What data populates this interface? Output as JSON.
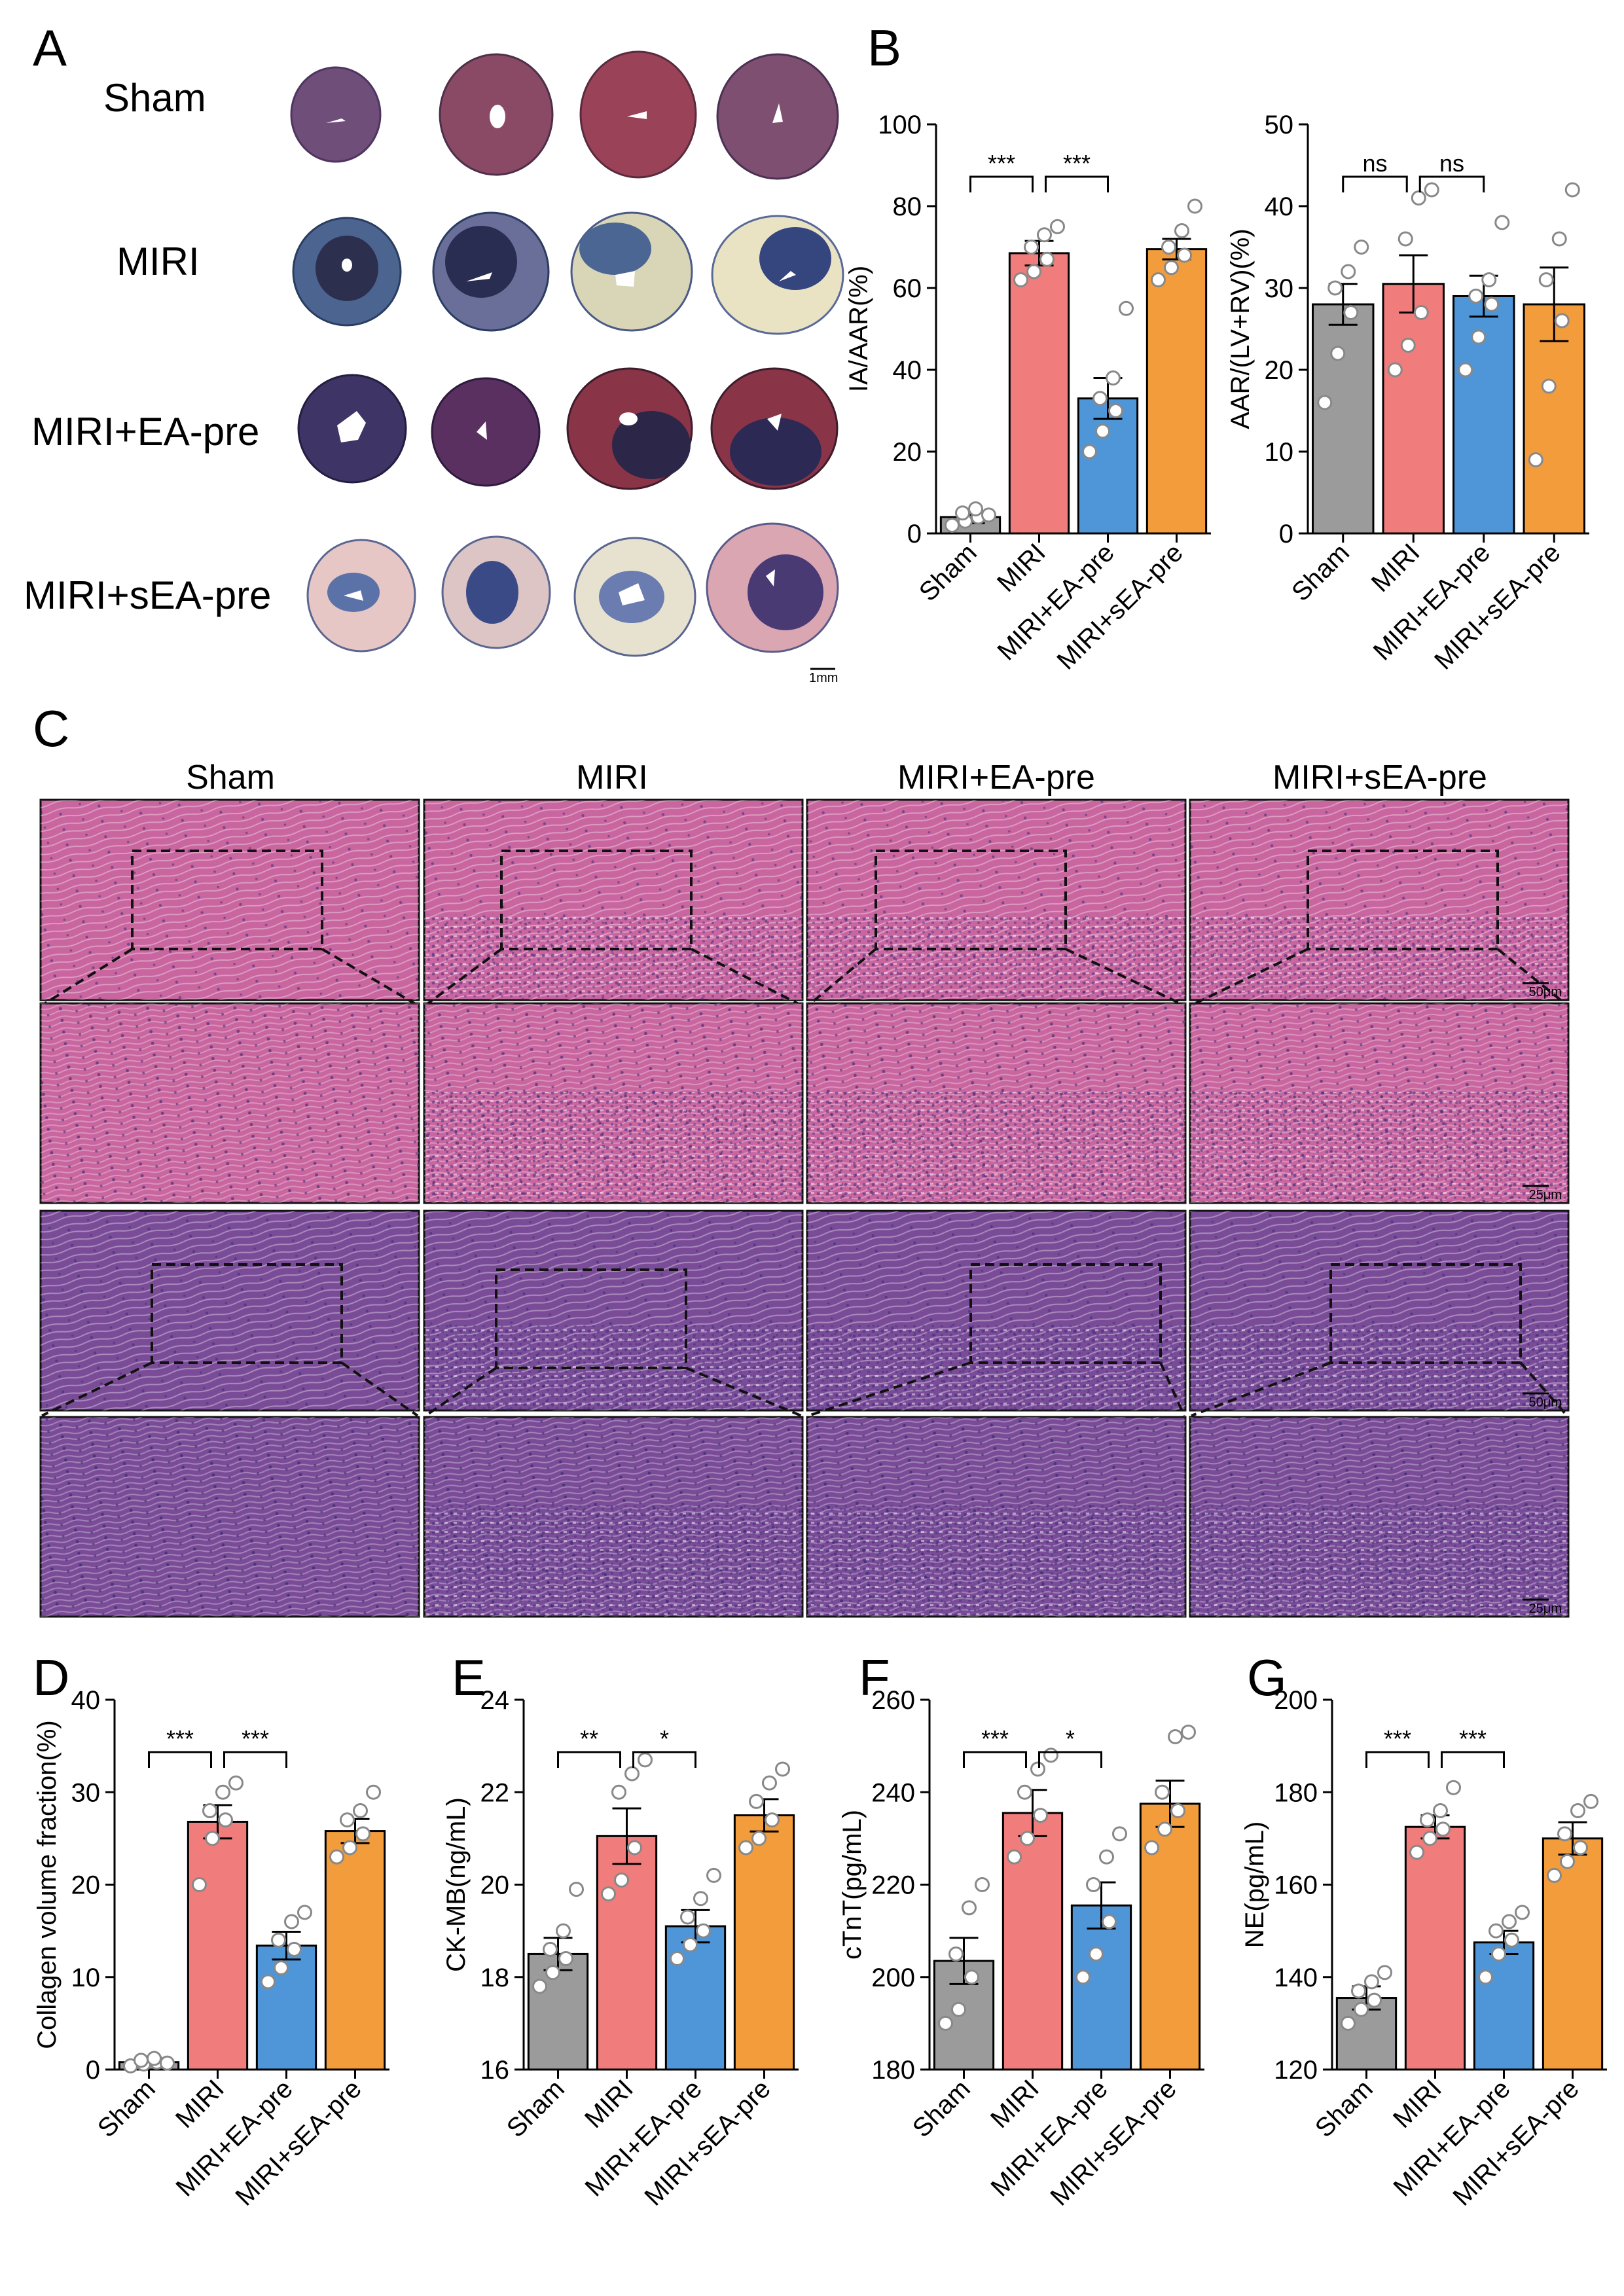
{
  "panels": {
    "A": {
      "letter": "A",
      "rows": [
        "Sham",
        "MIRI",
        "MIRI+EA-pre",
        "MIRI+sEA-pre"
      ],
      "scale_bar": "1mm",
      "colors": {
        "infarct": "#f3efdf",
        "viable": "#a4394f",
        "blue_area": "#2f3570"
      }
    },
    "B": {
      "letter": "B"
    },
    "C": {
      "letter": "C",
      "columns": [
        "Sham",
        "MIRI",
        "MIRI+EA-pre",
        "MIRI+sEA-pre"
      ],
      "scale_bars": [
        "50μm",
        "25μm",
        "50μm",
        "25μm"
      ],
      "colors": {
        "he": "#c9659f",
        "masson": "#7a4c98"
      }
    },
    "D": {
      "letter": "D"
    },
    "E": {
      "letter": "E"
    },
    "F": {
      "letter": "F"
    },
    "G": {
      "letter": "G"
    }
  },
  "colors": {
    "Sham": "#9b9b9b",
    "MIRI": "#f07c7c",
    "MIRI+EA-pre": "#4f96d8",
    "MIRI+sEA-pre": "#f39c3c"
  },
  "chart_data": [
    {
      "id": "B1",
      "type": "bar",
      "categories": [
        "Sham",
        "MIRI",
        "MIRI+EA-pre",
        "MIRI+sEA-pre"
      ],
      "values": [
        4,
        68.5,
        33,
        69.5
      ],
      "errors": [
        1.5,
        3,
        5,
        2.5
      ],
      "points": [
        [
          2,
          3,
          4,
          5,
          6,
          4.5
        ],
        [
          62,
          64,
          67,
          70,
          73,
          75
        ],
        [
          20,
          25,
          30,
          33,
          38,
          55
        ],
        [
          62,
          65,
          68,
          70,
          74,
          80
        ]
      ],
      "ylabel": "IA/AAR(%)",
      "ylim": [
        0,
        100
      ],
      "yticks": [
        0,
        20,
        40,
        60,
        80,
        100
      ],
      "annotations": [
        {
          "from": 0,
          "to": 1,
          "text": "***"
        },
        {
          "from": 1,
          "to": 2,
          "text": "***"
        }
      ]
    },
    {
      "id": "B2",
      "type": "bar",
      "categories": [
        "Sham",
        "MIRI",
        "MIRI+EA-pre",
        "MIRI+sEA-pre"
      ],
      "values": [
        28,
        30.5,
        29,
        28
      ],
      "errors": [
        2.5,
        3.5,
        2.5,
        4.5
      ],
      "points": [
        [
          16,
          22,
          27,
          30,
          32,
          35
        ],
        [
          20,
          23,
          27,
          36,
          41,
          42
        ],
        [
          20,
          24,
          28,
          29,
          31,
          38
        ],
        [
          9,
          18,
          26,
          31,
          36,
          42
        ]
      ],
      "ylabel": "AAR/(LV+RV)(%)",
      "ylim": [
        0,
        50
      ],
      "yticks": [
        0,
        10,
        20,
        30,
        40,
        50
      ],
      "annotations": [
        {
          "from": 0,
          "to": 1,
          "text": "ns"
        },
        {
          "from": 1,
          "to": 2,
          "text": "ns"
        }
      ]
    },
    {
      "id": "D",
      "type": "bar",
      "categories": [
        "Sham",
        "MIRI",
        "MIRI+EA-pre",
        "MIRI+sEA-pre"
      ],
      "values": [
        0.8,
        26.8,
        13.4,
        25.8
      ],
      "errors": [
        0.3,
        1.8,
        1.5,
        1.3
      ],
      "points": [
        [
          0.4,
          0.6,
          0.8,
          1,
          1.2,
          0.7
        ],
        [
          20,
          25,
          27,
          28,
          30,
          31
        ],
        [
          9.5,
          11,
          13,
          14,
          16,
          17
        ],
        [
          23,
          24,
          25.5,
          27,
          28,
          30
        ]
      ],
      "ylabel": "Collagen volume fraction(%)",
      "ylim": [
        0,
        40
      ],
      "yticks": [
        0,
        10,
        20,
        30,
        40
      ],
      "annotations": [
        {
          "from": 0,
          "to": 1,
          "text": "***"
        },
        {
          "from": 1,
          "to": 2,
          "text": "***"
        }
      ]
    },
    {
      "id": "E",
      "type": "bar",
      "categories": [
        "Sham",
        "MIRI",
        "MIRI+EA-pre",
        "MIRI+sEA-pre"
      ],
      "values": [
        18.5,
        21.05,
        19.1,
        21.5
      ],
      "errors": [
        0.35,
        0.6,
        0.35,
        0.35
      ],
      "points": [
        [
          17.8,
          18.1,
          18.4,
          18.6,
          19.0,
          19.9
        ],
        [
          19.8,
          20.1,
          20.8,
          22.0,
          22.4,
          22.7
        ],
        [
          18.4,
          18.7,
          19.0,
          19.3,
          19.7,
          20.2
        ],
        [
          20.8,
          21.0,
          21.4,
          21.8,
          22.2,
          22.5
        ]
      ],
      "ylabel": "CK-MB(ng/mL)",
      "ylim": [
        16,
        24
      ],
      "yticks": [
        16,
        18,
        20,
        22,
        24
      ],
      "annotations": [
        {
          "from": 0,
          "to": 1,
          "text": "**"
        },
        {
          "from": 1,
          "to": 2,
          "text": "*"
        }
      ]
    },
    {
      "id": "F",
      "type": "bar",
      "categories": [
        "Sham",
        "MIRI",
        "MIRI+EA-pre",
        "MIRI+sEA-pre"
      ],
      "values": [
        203.5,
        235.5,
        215.5,
        237.5
      ],
      "errors": [
        5,
        5,
        5,
        5
      ],
      "points": [
        [
          190,
          193,
          200,
          205,
          215,
          220
        ],
        [
          226,
          230,
          235,
          240,
          245,
          248
        ],
        [
          200,
          205,
          212,
          220,
          226,
          231
        ],
        [
          228,
          232,
          236,
          240,
          252,
          253
        ]
      ],
      "ylabel": "cTnT(pg/mL)",
      "ylim": [
        180,
        260
      ],
      "yticks": [
        180,
        200,
        220,
        240,
        260
      ],
      "annotations": [
        {
          "from": 0,
          "to": 1,
          "text": "***"
        },
        {
          "from": 1,
          "to": 2,
          "text": "*"
        }
      ]
    },
    {
      "id": "G",
      "type": "bar",
      "categories": [
        "Sham",
        "MIRI",
        "MIRI+EA-pre",
        "MIRI+sEA-pre"
      ],
      "values": [
        135.5,
        172.5,
        147.5,
        170
      ],
      "errors": [
        2.5,
        2.5,
        2.5,
        3.5
      ],
      "points": [
        [
          130,
          133,
          135,
          137,
          139,
          141
        ],
        [
          167,
          170,
          172,
          174,
          176,
          181
        ],
        [
          140,
          145,
          148,
          150,
          152,
          154
        ],
        [
          162,
          165,
          168,
          171,
          176,
          178
        ]
      ],
      "ylabel": "NE(pg/mL)",
      "ylim": [
        120,
        200
      ],
      "yticks": [
        120,
        140,
        160,
        180,
        200
      ],
      "annotations": [
        {
          "from": 0,
          "to": 1,
          "text": "***"
        },
        {
          "from": 1,
          "to": 2,
          "text": "***"
        }
      ]
    }
  ]
}
